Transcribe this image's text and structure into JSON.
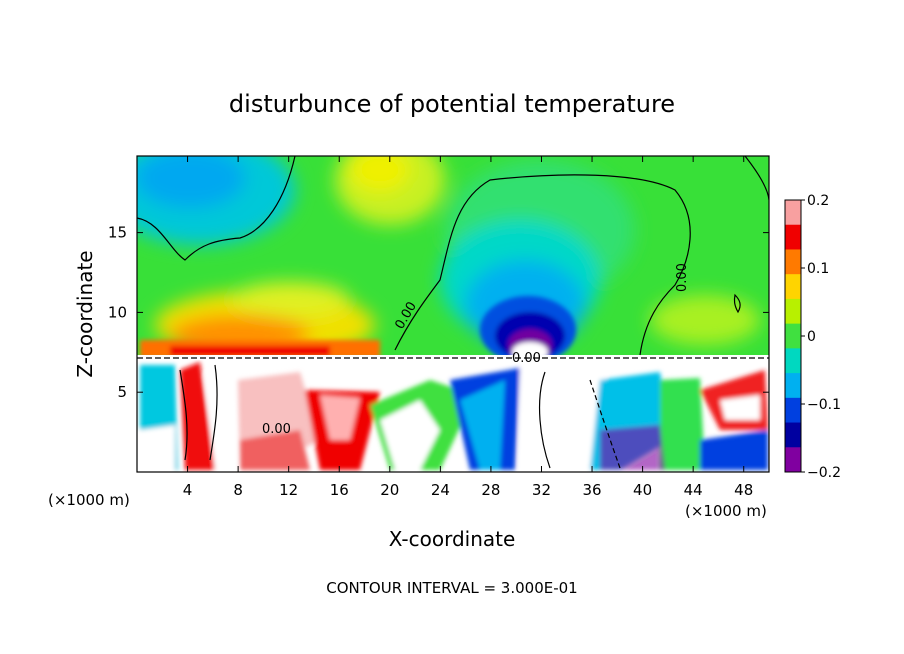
{
  "chart_data": {
    "type": "heatmap",
    "title": "disturbunce of potential temperature",
    "xlabel": "X-coordinate",
    "ylabel": "Z-coordinate",
    "x_unit": "(×1000 m)",
    "xlim": [
      0,
      50
    ],
    "ylim": [
      0,
      19.8
    ],
    "x_ticks": [
      4,
      8,
      12,
      16,
      20,
      24,
      28,
      32,
      36,
      40,
      44,
      48
    ],
    "y_ticks": [
      5,
      10,
      15
    ],
    "colorbar": {
      "range": [
        -0.2,
        0.2
      ],
      "ticks": [
        0.2,
        0.1,
        0,
        -0.1,
        -0.2
      ],
      "tick_labels": [
        "0.2",
        "0.1",
        "0",
        "−0.1",
        "−0.2"
      ],
      "colors": [
        "#f8a0a0",
        "#f00000",
        "#ff7a00",
        "#ffd400",
        "#b8f000",
        "#40e040",
        "#00d8c0",
        "#00b0f0",
        "#0040e0",
        "#0000a0",
        "#8000a0"
      ]
    },
    "contour_labels": [
      "0.00",
      "0.00",
      "0.00",
      "0.00"
    ],
    "footer": "CONTOUR INTERVAL = 3.000E-01",
    "features": [
      {
        "name": "cold-core",
        "x": 31,
        "z": 8.5,
        "value": -0.2
      },
      {
        "name": "warm-band",
        "x": 12,
        "z": 9,
        "value": 0.1
      },
      {
        "name": "cool-upper-left",
        "x": 4,
        "z": 18,
        "value": -0.08
      },
      {
        "name": "warm-upper",
        "x": 20,
        "z": 18,
        "value": 0.05
      }
    ]
  }
}
